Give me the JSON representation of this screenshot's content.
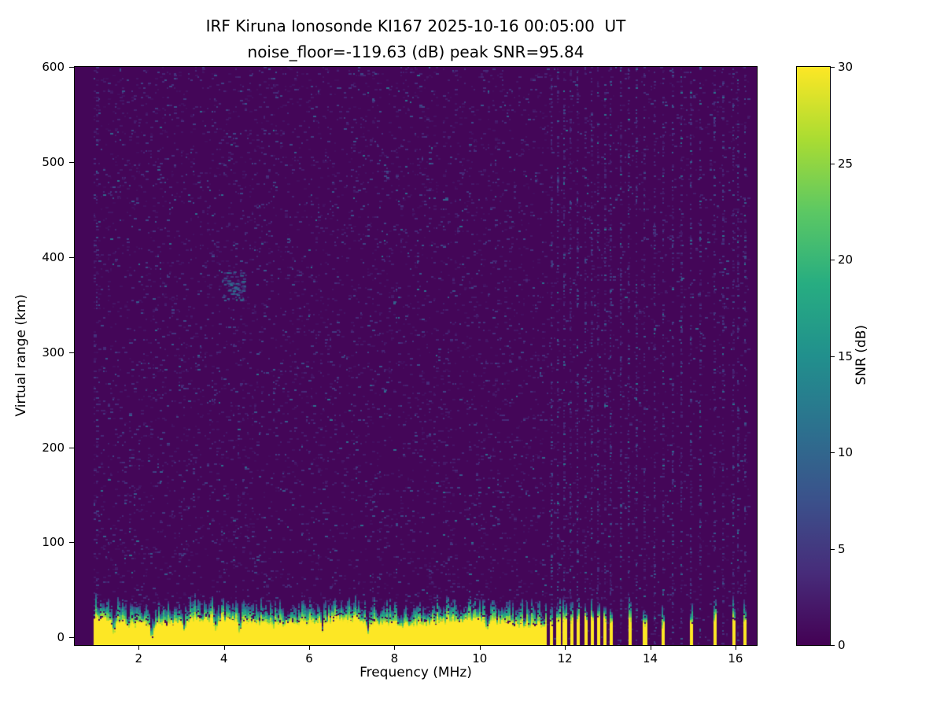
{
  "chart_data": {
    "type": "heatmap",
    "title": "IRF Kiruna Ionosonde KI167 2025-10-16 00:05:00  UT",
    "subtitle": "noise_floor=-119.63 (dB) peak SNR=95.84",
    "station": "KI167",
    "timestamp_ut": "2025-10-16 00:05:00",
    "noise_floor_db": -119.63,
    "peak_snr_db": 95.84,
    "xlabel": "Frequency (MHz)",
    "ylabel": "Virtual range (km)",
    "xlim": [
      0.5,
      16.5
    ],
    "ylim": [
      -8,
      600
    ],
    "xticks": [
      2,
      4,
      6,
      8,
      10,
      12,
      14,
      16
    ],
    "yticks": [
      0,
      100,
      200,
      300,
      400,
      500,
      600
    ],
    "colorbar": {
      "label": "SNR (dB)",
      "min": 0,
      "max": 30,
      "ticks": [
        0,
        5,
        10,
        15,
        20,
        25,
        30
      ],
      "colormap": "viridis"
    },
    "data_extent_mhz": [
      0.95,
      16.3
    ],
    "background": {
      "base_snr_db": 0.4,
      "speckle_density": 0.085,
      "speckle_density_above_11p6": 0.045,
      "speckle_max_snr_db": 11,
      "left_edge_noisy_column_mhz": 1.05,
      "echo_patch": {
        "freq_mhz": 4.2,
        "range_km": 370,
        "snr_db": 10
      }
    },
    "ground_clutter": {
      "saturated_top_km": 17,
      "transition_top_km": 36,
      "bottom_km": -8,
      "continuous_band_max_mhz": 11.55,
      "stripe_frequencies_mhz": [
        11.68,
        11.83,
        11.98,
        12.13,
        12.3,
        12.47,
        12.63,
        12.78,
        12.93,
        13.07,
        13.5,
        13.86,
        14.3,
        14.95,
        15.5,
        15.94,
        16.22
      ],
      "stripe_width_mhz": 0.08,
      "notch_frequencies_mhz": [
        1.4,
        2.3,
        3.05,
        3.8,
        4.35,
        6.3,
        7.35,
        10.15
      ]
    },
    "rfi_extra_columns_mhz": [
      13.3,
      13.68,
      14.1,
      14.52,
      14.72,
      15.18,
      15.7,
      16.05
    ],
    "colors": {
      "background_low": "#440154",
      "peak": "#fde725"
    }
  }
}
